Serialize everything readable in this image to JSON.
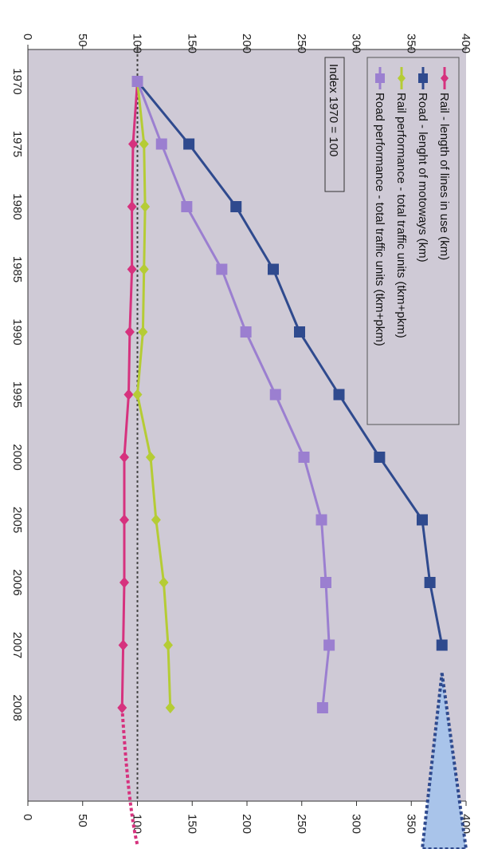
{
  "chart_data": {
    "type": "line",
    "orientation": "rotated 90° clockwise (x axis runs top to bottom, y axis runs left to right)",
    "x": [
      "1970",
      "1975",
      "1980",
      "1985",
      "1990",
      "1995",
      "2000",
      "2005",
      "2006",
      "2007",
      "2008"
    ],
    "ylim": [
      0,
      400
    ],
    "yticks": [
      "0",
      "50",
      "100",
      "150",
      "200",
      "250",
      "300",
      "350",
      "400"
    ],
    "reference_line": 100,
    "note": "Index 1970 = 100",
    "legend_position": "top-right",
    "grid": false,
    "plot_background": "#cfcad6",
    "series": [
      {
        "name": "Rail - length of lines in use (km)",
        "color": "#d6327e",
        "marker": "diamond",
        "values": [
          100,
          96,
          95,
          95,
          93,
          92,
          88,
          88,
          88,
          87,
          86
        ]
      },
      {
        "name": "Road - lenght of motoways (km)",
        "color": "#2f4a8e",
        "marker": "square",
        "values": [
          100,
          147,
          190,
          224,
          248,
          284,
          321,
          360,
          367,
          378,
          null
        ]
      },
      {
        "name": "Rail performance - total traffic units (tkm+pkm)",
        "color": "#b5cc35",
        "marker": "diamond",
        "values": [
          100,
          106,
          107,
          106,
          105,
          100,
          112,
          117,
          124,
          128,
          130
        ]
      },
      {
        "name": "Road performance - total traffic units (tkm+pkm)",
        "color": "#9b7fd0",
        "marker": "square",
        "values": [
          100,
          122,
          145,
          177,
          199,
          226,
          252,
          268,
          272,
          275,
          269
        ]
      }
    ]
  }
}
